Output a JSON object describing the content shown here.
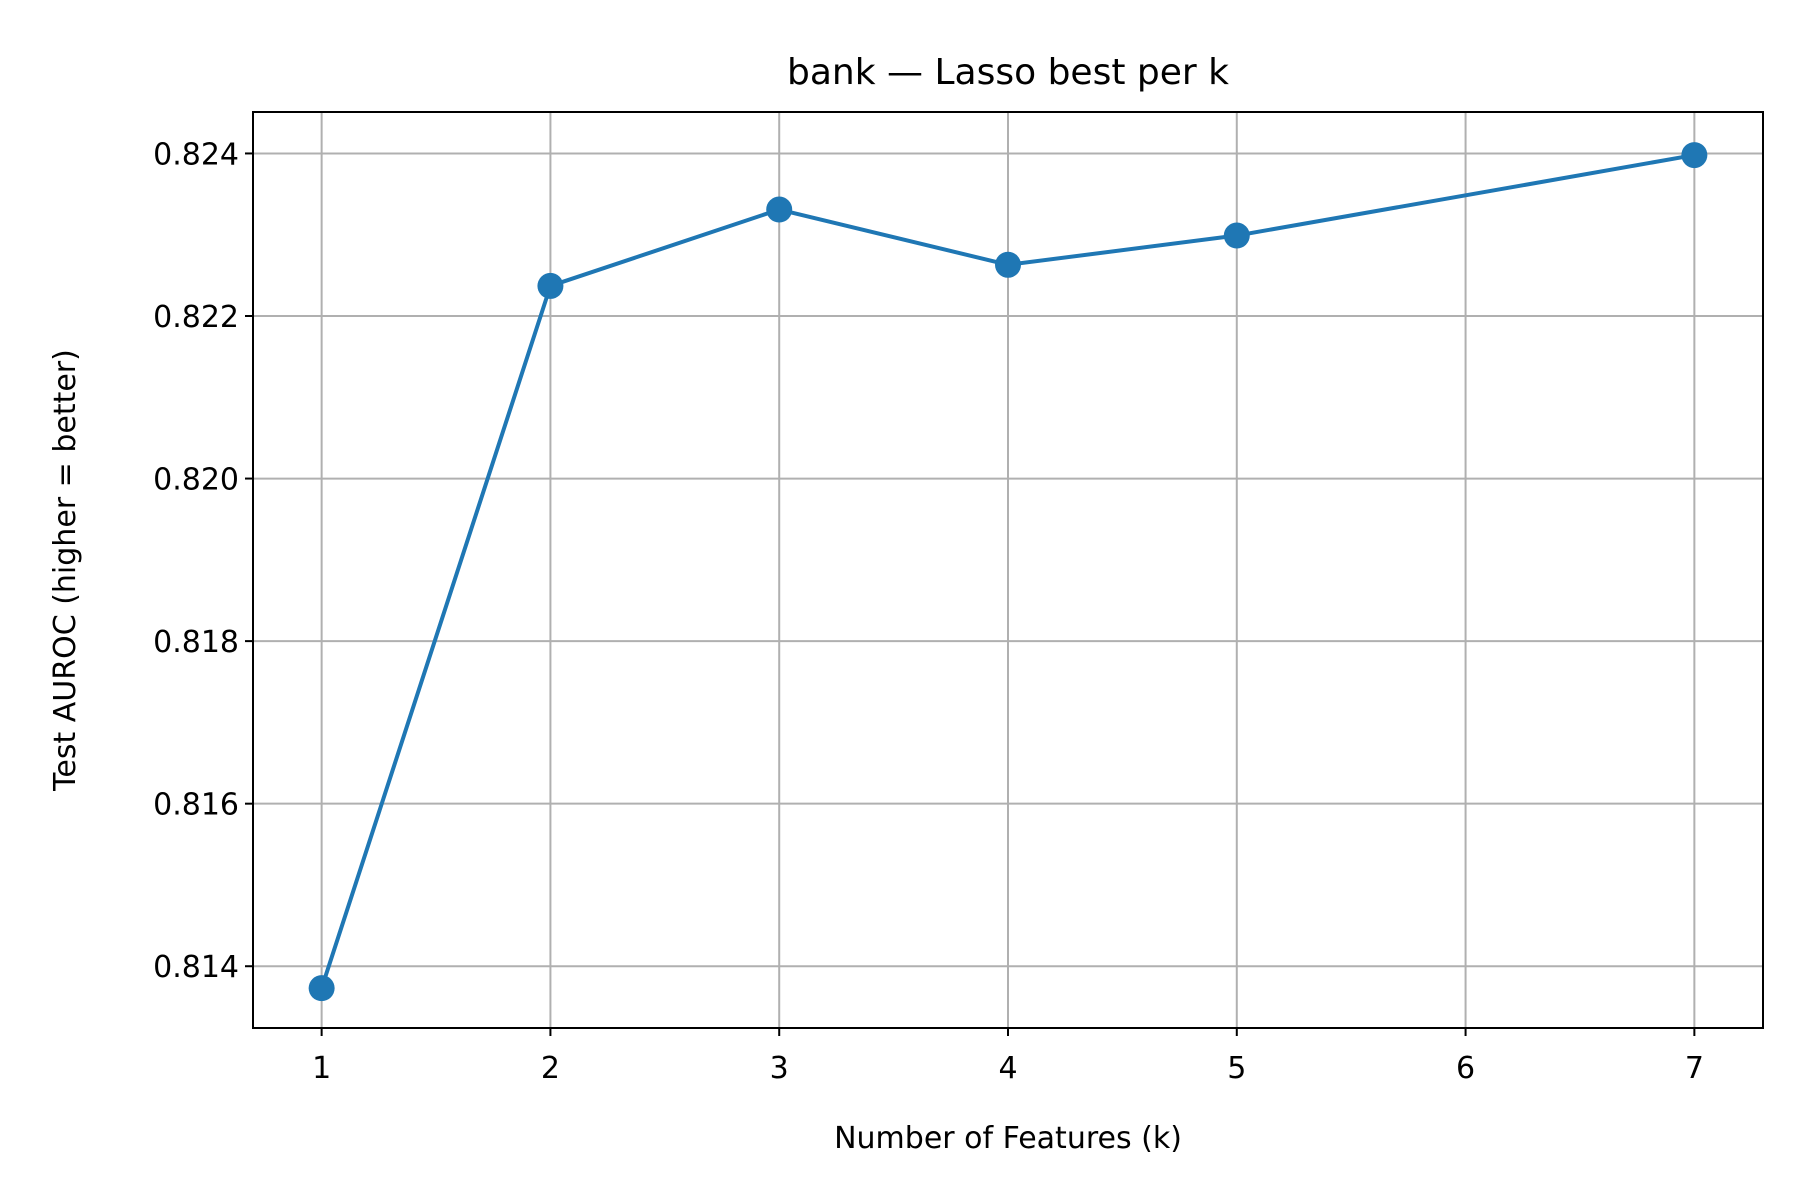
{
  "chart_data": {
    "type": "line",
    "title": "bank — Lasso best per k",
    "xlabel": "Number of Features (k)",
    "ylabel": "Test AUROC (higher = better)",
    "x_ticks": [
      1,
      2,
      3,
      4,
      5,
      6,
      7
    ],
    "x_tick_labels": [
      "1",
      "2",
      "3",
      "4",
      "5",
      "6",
      "7"
    ],
    "y_ticks": [
      0.814,
      0.816,
      0.818,
      0.82,
      0.822,
      0.824
    ],
    "y_tick_labels": [
      "0.814",
      "0.816",
      "0.818",
      "0.820",
      "0.822",
      "0.824"
    ],
    "xlim": [
      0.7,
      7.3
    ],
    "ylim": [
      0.81324,
      0.82451
    ],
    "grid": true,
    "series": [
      {
        "x": [
          1,
          2,
          3,
          4,
          5,
          7
        ],
        "y": [
          0.81373,
          0.82237,
          0.82331,
          0.82263,
          0.82299,
          0.82398
        ],
        "color": "#1f77b4",
        "marker": "circle"
      }
    ]
  }
}
